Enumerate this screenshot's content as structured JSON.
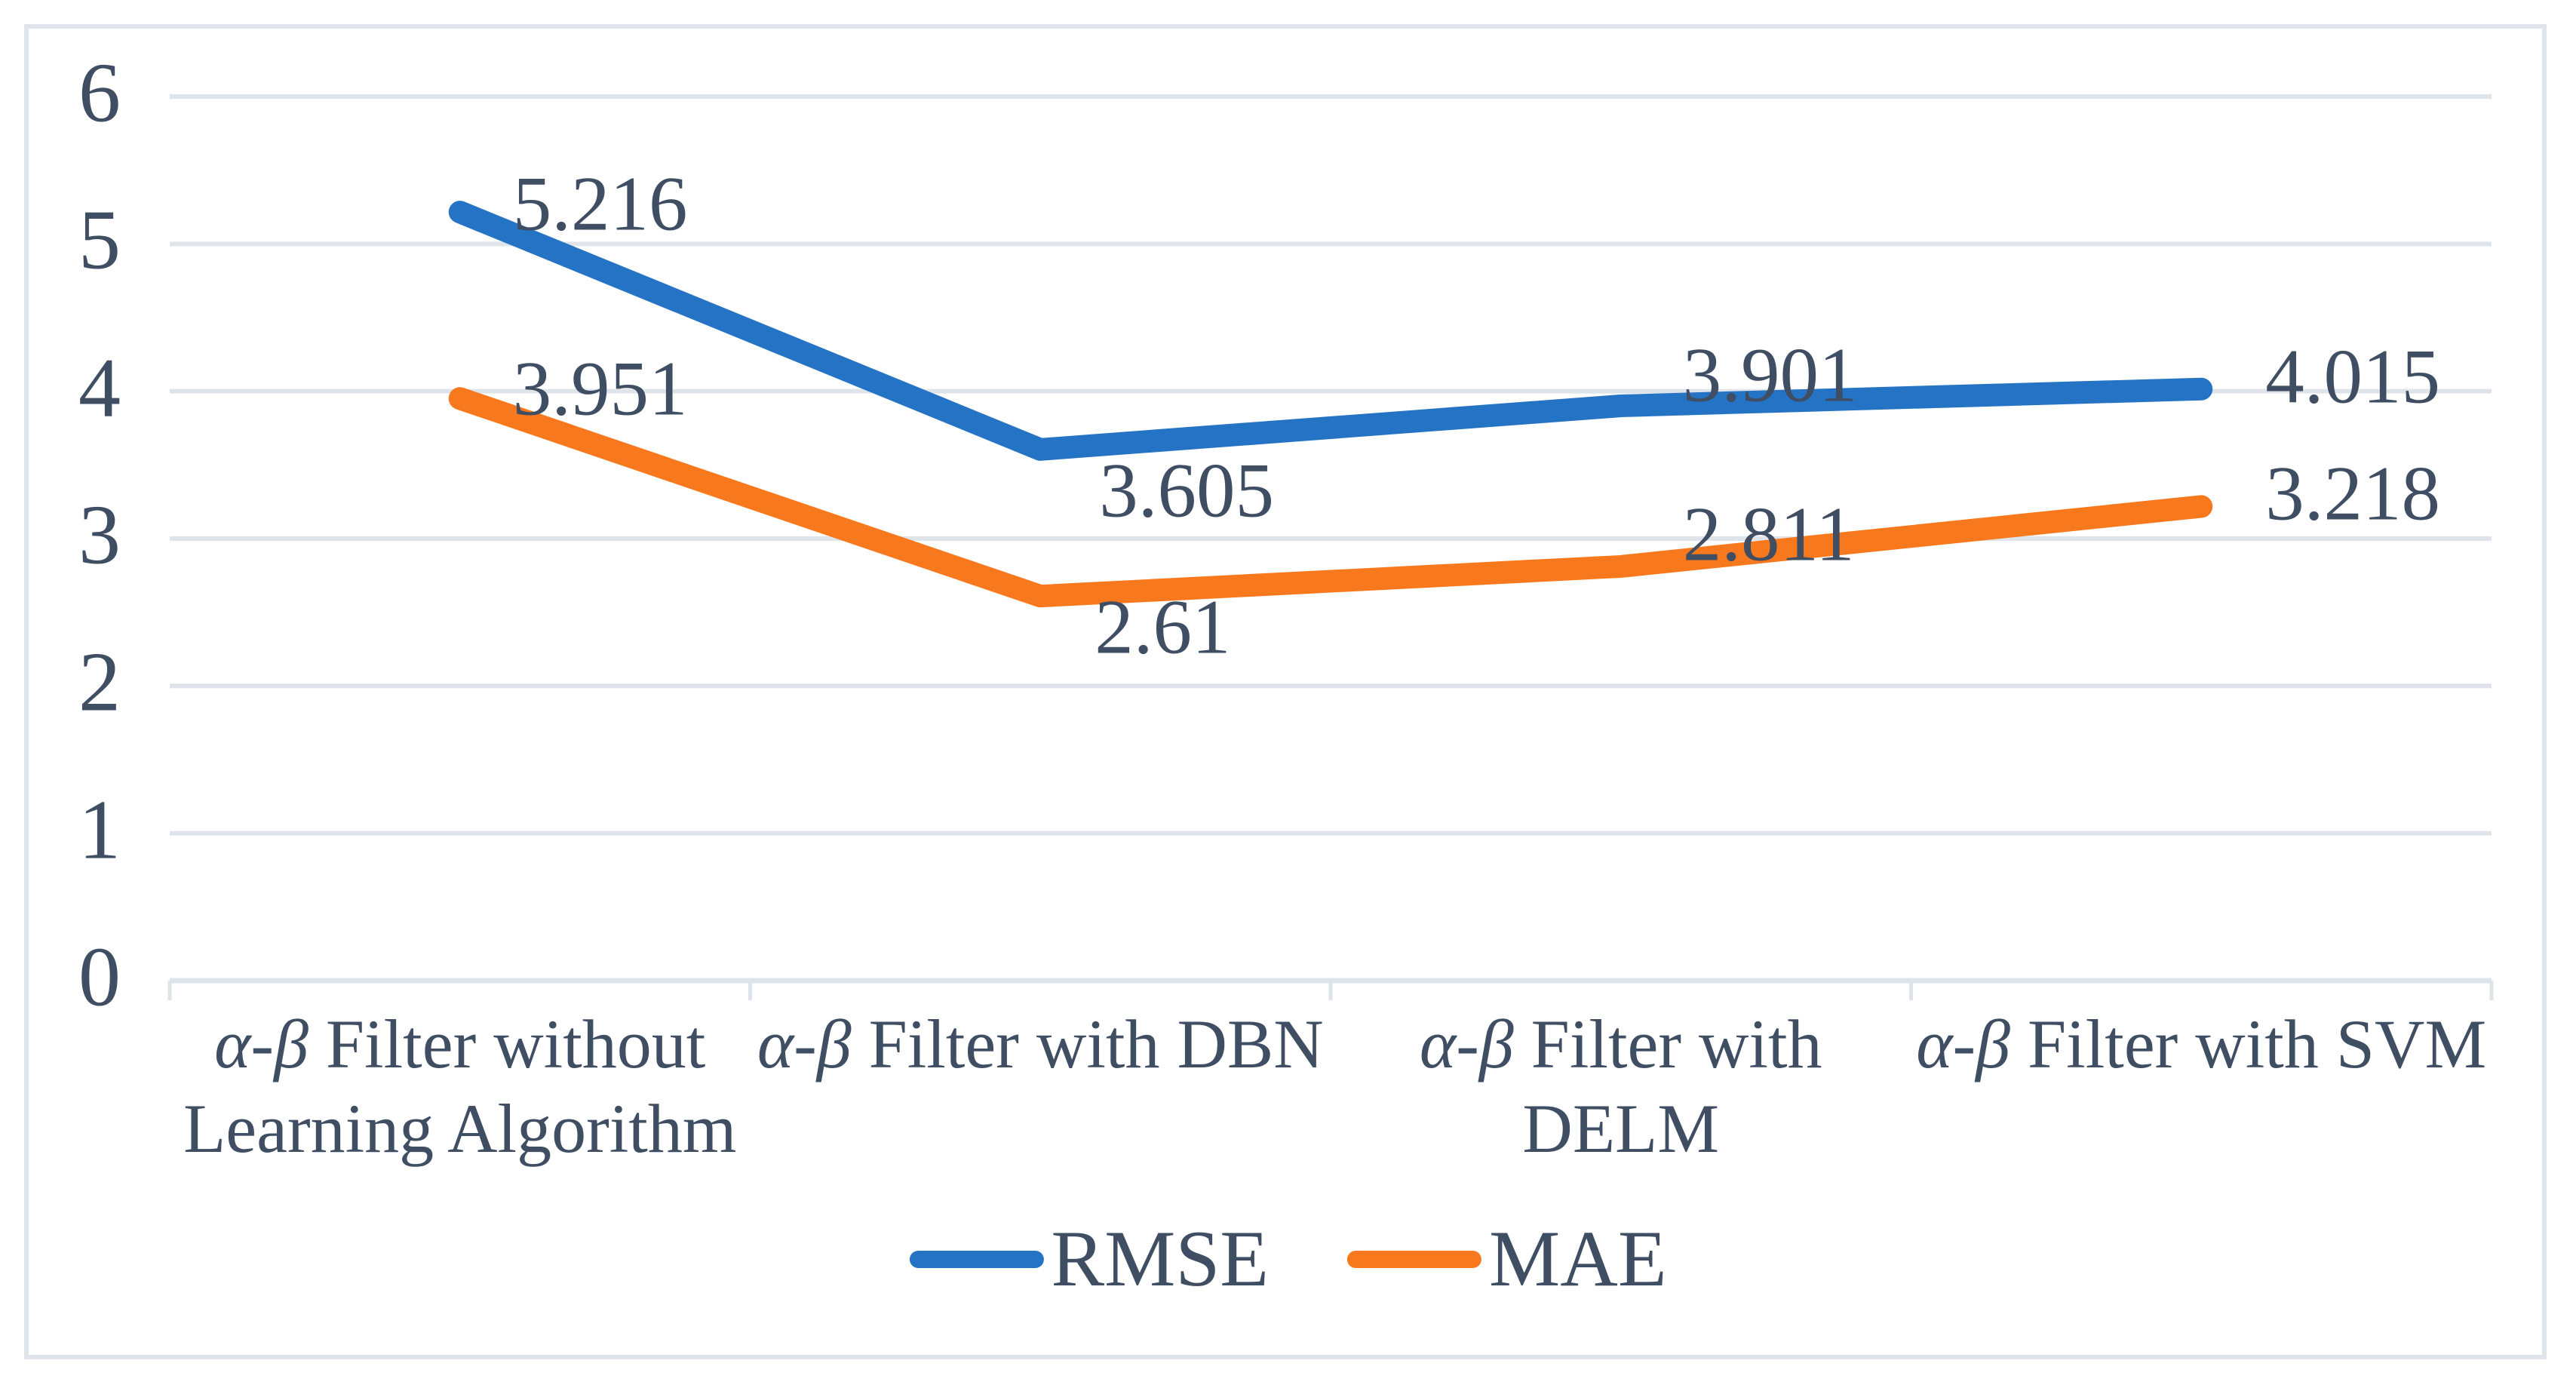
{
  "colors": {
    "text": "#3F4E63",
    "gridline": "#DFE4EB",
    "frame_border": "#DFE4EB",
    "rmse_blue": "#2573C4",
    "mae_orange": "#F8791D",
    "background": "#FFFFFF"
  },
  "chart_data": {
    "type": "line",
    "title": "",
    "xlabel": "",
    "ylabel": "",
    "grid": true,
    "legend_position": "bottom",
    "categories": [
      {
        "prefix": "α-β",
        "rest": "Filter without Learning Algorithm"
      },
      {
        "prefix": "α-β",
        "rest": "Filter with DBN"
      },
      {
        "prefix": "α-β",
        "rest": "Filter with DELM"
      },
      {
        "prefix": "α-β",
        "rest": "Filter with SVM"
      }
    ],
    "y_axis": {
      "min": 0,
      "max": 6,
      "step": 1,
      "tick_labels": [
        "0",
        "1",
        "2",
        "3",
        "4",
        "5",
        "6"
      ]
    },
    "series": [
      {
        "name": "RMSE",
        "color": "#2573C4",
        "values": [
          5.216,
          3.605,
          3.901,
          4.015
        ],
        "data_labels": [
          "5.216",
          "3.605",
          "3.901",
          "4.015"
        ]
      },
      {
        "name": "MAE",
        "color": "#F8791D",
        "values": [
          3.951,
          2.61,
          2.811,
          3.218
        ],
        "data_labels": [
          "3.951",
          "2.61",
          "2.811",
          "3.218"
        ]
      }
    ]
  }
}
